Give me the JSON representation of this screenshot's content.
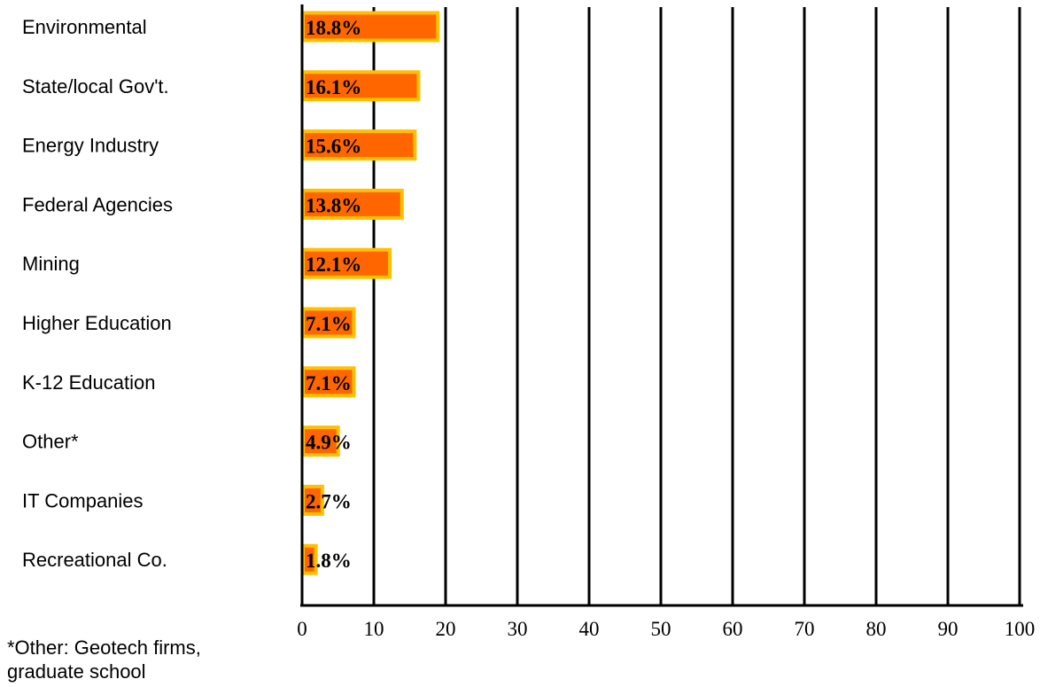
{
  "chart_data": {
    "type": "bar",
    "orientation": "horizontal",
    "categories": [
      "Environmental",
      "State/local Gov't.",
      "Energy Industry",
      "Federal Agencies",
      "Mining",
      "Higher Education",
      "K-12 Education",
      "Other*",
      "IT Companies",
      "Recreational Co."
    ],
    "values": [
      18.8,
      16.1,
      15.6,
      13.8,
      12.1,
      7.1,
      7.1,
      4.9,
      2.7,
      1.8
    ],
    "value_labels": [
      "18.8%",
      "16.1%",
      "15.6%",
      "13.8%",
      "12.1%",
      "7.1%",
      "7.1%",
      "4.9%",
      "2.7%",
      "1.8%"
    ],
    "x_ticks": [
      0,
      10,
      20,
      30,
      40,
      50,
      60,
      70,
      80,
      90,
      100
    ],
    "xlim": [
      0,
      100
    ],
    "grid": true,
    "bar_color": "#FF6600",
    "bar_border_color": "#FFC000"
  },
  "footnote": {
    "line1": "*Other: Geotech firms,",
    "line2": "graduate school"
  }
}
